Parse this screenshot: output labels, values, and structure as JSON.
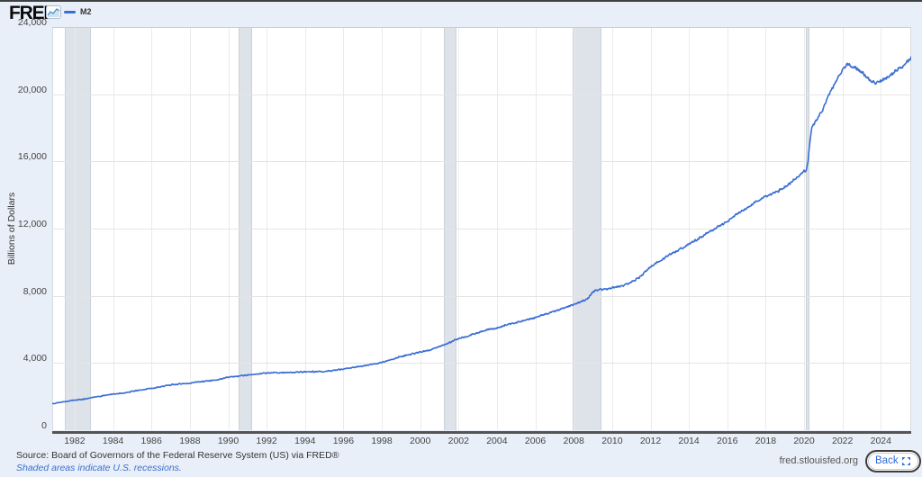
{
  "header": {
    "logo_text": "FRED",
    "legend": {
      "series_label": "M2"
    }
  },
  "footer": {
    "source_line": "Source: Board of Governors of the Federal Reserve System (US) via FRED®",
    "recession_note": "Shaded areas indicate U.S. recessions.",
    "site_link": "fred.stlouisfed.org",
    "back_button_label": "Back"
  },
  "colors": {
    "page_bg": "#e9eff8",
    "plot_bg": "#ffffff",
    "gridline": "#e4e4e4",
    "recession_band": "#dee3e9",
    "axis_line": "#545454",
    "tick_label": "#444444",
    "series_line": "#3a6ed3",
    "link_blue": "#3b6fd0",
    "back_blue": "#2e6bd8"
  },
  "chart_data": {
    "type": "line",
    "title": "",
    "xlabel": "",
    "ylabel": "Billions of Dollars",
    "grid": true,
    "legend_position": "top-left",
    "x_range": [
      1980.83,
      2025.58
    ],
    "y_range": [
      0,
      24000
    ],
    "y_ticks": [
      24000,
      20000,
      16000,
      12000,
      8000,
      4000,
      0
    ],
    "y_tick_labels": [
      "24,000",
      "20,000",
      "16,000",
      "12,000",
      "8,000",
      "4,000",
      "0"
    ],
    "x_ticks": [
      1982,
      1984,
      1986,
      1988,
      1990,
      1992,
      1994,
      1996,
      1998,
      2000,
      2002,
      2004,
      2006,
      2008,
      2010,
      2012,
      2014,
      2016,
      2018,
      2020,
      2022,
      2024
    ],
    "x_tick_labels": [
      "1982",
      "1984",
      "1986",
      "1988",
      "1990",
      "1992",
      "1994",
      "1996",
      "1998",
      "2000",
      "2002",
      "2004",
      "2006",
      "2008",
      "2010",
      "2012",
      "2014",
      "2016",
      "2018",
      "2020",
      "2022",
      "2024"
    ],
    "recession_bands": [
      [
        1981.5,
        1982.87
      ],
      [
        1990.54,
        1991.25
      ],
      [
        2001.21,
        2001.87
      ],
      [
        2007.92,
        2009.46
      ],
      [
        2020.08,
        2020.29
      ]
    ],
    "series": [
      {
        "name": "M2",
        "color": "#3a6ed3",
        "units": "Billions of Dollars",
        "points": [
          [
            1980.83,
            1595
          ],
          [
            1981.0,
            1615
          ],
          [
            1981.5,
            1690
          ],
          [
            1982.0,
            1794
          ],
          [
            1982.5,
            1855
          ],
          [
            1983.0,
            1960
          ],
          [
            1983.5,
            2055
          ],
          [
            1984.0,
            2139
          ],
          [
            1984.5,
            2205
          ],
          [
            1985.0,
            2312
          ],
          [
            1985.5,
            2400
          ],
          [
            1986.0,
            2490
          ],
          [
            1986.5,
            2590
          ],
          [
            1987.0,
            2700
          ],
          [
            1987.5,
            2750
          ],
          [
            1988.0,
            2810
          ],
          [
            1988.5,
            2880
          ],
          [
            1989.0,
            2940
          ],
          [
            1989.5,
            3010
          ],
          [
            1990.0,
            3164
          ],
          [
            1990.5,
            3215
          ],
          [
            1991.0,
            3283
          ],
          [
            1991.5,
            3345
          ],
          [
            1992.0,
            3408
          ],
          [
            1992.5,
            3415
          ],
          [
            1993.0,
            3420
          ],
          [
            1993.5,
            3445
          ],
          [
            1994.0,
            3475
          ],
          [
            1994.5,
            3482
          ],
          [
            1995.0,
            3490
          ],
          [
            1995.5,
            3565
          ],
          [
            1996.0,
            3650
          ],
          [
            1996.5,
            3725
          ],
          [
            1997.0,
            3815
          ],
          [
            1997.5,
            3915
          ],
          [
            1998.0,
            4033
          ],
          [
            1998.5,
            4185
          ],
          [
            1999.0,
            4390
          ],
          [
            1999.5,
            4515
          ],
          [
            2000.0,
            4645
          ],
          [
            2000.5,
            4770
          ],
          [
            2001.0,
            4980
          ],
          [
            2001.5,
            5200
          ],
          [
            2002.0,
            5450
          ],
          [
            2002.5,
            5600
          ],
          [
            2003.0,
            5810
          ],
          [
            2003.5,
            5985
          ],
          [
            2004.0,
            6065
          ],
          [
            2004.5,
            6280
          ],
          [
            2005.0,
            6410
          ],
          [
            2005.5,
            6560
          ],
          [
            2006.0,
            6710
          ],
          [
            2006.5,
            6890
          ],
          [
            2007.0,
            7075
          ],
          [
            2007.5,
            7290
          ],
          [
            2008.0,
            7490
          ],
          [
            2008.5,
            7690
          ],
          [
            2008.75,
            7870
          ],
          [
            2009.0,
            8250
          ],
          [
            2009.4,
            8400
          ],
          [
            2009.75,
            8390
          ],
          [
            2010.0,
            8470
          ],
          [
            2010.5,
            8560
          ],
          [
            2011.0,
            8820
          ],
          [
            2011.5,
            9150
          ],
          [
            2012.0,
            9750
          ],
          [
            2012.5,
            10070
          ],
          [
            2013.0,
            10450
          ],
          [
            2013.5,
            10740
          ],
          [
            2014.0,
            11060
          ],
          [
            2014.5,
            11410
          ],
          [
            2015.0,
            11750
          ],
          [
            2015.5,
            12090
          ],
          [
            2016.0,
            12430
          ],
          [
            2016.5,
            12850
          ],
          [
            2017.0,
            13230
          ],
          [
            2017.5,
            13590
          ],
          [
            2018.0,
            13880
          ],
          [
            2018.5,
            14140
          ],
          [
            2019.0,
            14480
          ],
          [
            2019.5,
            14900
          ],
          [
            2020.0,
            15420
          ],
          [
            2020.12,
            15470
          ],
          [
            2020.21,
            16080
          ],
          [
            2020.29,
            17050
          ],
          [
            2020.38,
            17900
          ],
          [
            2020.5,
            18200
          ],
          [
            2020.75,
            18650
          ],
          [
            2021.0,
            19130
          ],
          [
            2021.25,
            19920
          ],
          [
            2021.5,
            20400
          ],
          [
            2021.75,
            20950
          ],
          [
            2022.0,
            21450
          ],
          [
            2022.25,
            21800
          ],
          [
            2022.4,
            21680
          ],
          [
            2022.6,
            21600
          ],
          [
            2022.8,
            21480
          ],
          [
            2023.0,
            21330
          ],
          [
            2023.25,
            20980
          ],
          [
            2023.5,
            20800
          ],
          [
            2023.75,
            20690
          ],
          [
            2024.0,
            20780
          ],
          [
            2024.25,
            20940
          ],
          [
            2024.5,
            21080
          ],
          [
            2024.75,
            21350
          ],
          [
            2025.0,
            21560
          ],
          [
            2025.2,
            21700
          ],
          [
            2025.4,
            21960
          ],
          [
            2025.58,
            22130
          ]
        ]
      }
    ]
  }
}
